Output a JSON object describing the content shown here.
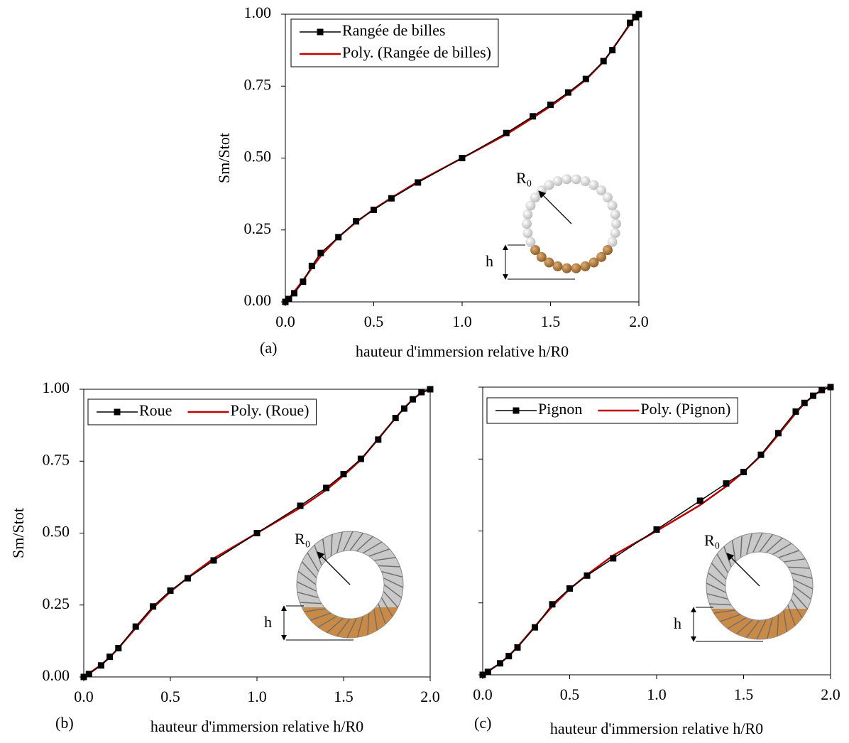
{
  "chart_data": [
    {
      "type": "line",
      "panel_label": "(a)",
      "ylabel": "Sm/Stot",
      "xlabel": "hauteur d'immersion relative h/R0",
      "xlim": [
        0,
        2
      ],
      "ylim": [
        0,
        1
      ],
      "xticks": [
        {
          "value": 0,
          "label": "0.0"
        },
        {
          "value": 0.5,
          "label": "0.5"
        },
        {
          "value": 1,
          "label": "1.0"
        },
        {
          "value": 1.5,
          "label": "1.5"
        },
        {
          "value": 2,
          "label": "2.0"
        }
      ],
      "yticks": [
        {
          "value": 0,
          "label": "0.00"
        },
        {
          "value": 0.25,
          "label": "0.25"
        },
        {
          "value": 0.5,
          "label": "0.50"
        },
        {
          "value": 0.75,
          "label": "0.75"
        },
        {
          "value": 1,
          "label": "1.00"
        }
      ],
      "show_ytick_labels": true,
      "legend_layout": "column",
      "inset": {
        "kind": "balls",
        "radius_label": "R₀",
        "height_label": "h"
      },
      "x": [
        0,
        0.02,
        0.05,
        0.1,
        0.15,
        0.2,
        0.3,
        0.4,
        0.5,
        0.6,
        0.75,
        1,
        1.25,
        1.4,
        1.5,
        1.6,
        1.7,
        1.8,
        1.85,
        1.95,
        1.98,
        2
      ],
      "series": [
        {
          "name": "Rangée de billes",
          "color": "#000000",
          "marker": "square",
          "values": [
            0,
            0.01,
            0.03,
            0.07,
            0.125,
            0.17,
            0.225,
            0.28,
            0.32,
            0.36,
            0.415,
            0.5,
            0.587,
            0.645,
            0.685,
            0.728,
            0.775,
            0.837,
            0.875,
            0.97,
            0.99,
            1
          ]
        },
        {
          "name": "Poly. (Rangée de billes)",
          "color": "#c00000",
          "marker": "none",
          "values": [
            0,
            0.012,
            0.035,
            0.075,
            0.118,
            0.16,
            0.225,
            0.277,
            0.322,
            0.362,
            0.418,
            0.5,
            0.582,
            0.64,
            0.68,
            0.724,
            0.772,
            0.835,
            0.878,
            0.965,
            0.988,
            1
          ]
        }
      ]
    },
    {
      "type": "line",
      "panel_label": "(b)",
      "ylabel": "Sm/Stot",
      "xlabel": "hauteur d'immersion relative h/R0",
      "xlim": [
        0,
        2
      ],
      "ylim": [
        0,
        1
      ],
      "xticks": [
        {
          "value": 0,
          "label": "0.0"
        },
        {
          "value": 0.5,
          "label": "0.5"
        },
        {
          "value": 1,
          "label": "1.0"
        },
        {
          "value": 1.5,
          "label": "1.5"
        },
        {
          "value": 2,
          "label": "2.0"
        }
      ],
      "yticks": [
        {
          "value": 0,
          "label": "0.00"
        },
        {
          "value": 0.25,
          "label": "0.25"
        },
        {
          "value": 0.5,
          "label": "0.50"
        },
        {
          "value": 0.75,
          "label": "0.75"
        },
        {
          "value": 1,
          "label": "1.00"
        }
      ],
      "show_ytick_labels": true,
      "legend_layout": "row",
      "inset": {
        "kind": "gear",
        "radius_label": "R₀",
        "height_label": "h"
      },
      "x": [
        0,
        0.03,
        0.1,
        0.15,
        0.2,
        0.3,
        0.4,
        0.5,
        0.6,
        0.75,
        1,
        1.25,
        1.4,
        1.5,
        1.6,
        1.7,
        1.8,
        1.85,
        1.9,
        1.95,
        2
      ],
      "series": [
        {
          "name": "Roue",
          "color": "#000000",
          "marker": "square",
          "values": [
            0,
            0.01,
            0.04,
            0.07,
            0.1,
            0.175,
            0.245,
            0.3,
            0.343,
            0.405,
            0.5,
            0.595,
            0.657,
            0.705,
            0.758,
            0.825,
            0.9,
            0.933,
            0.965,
            0.99,
            1
          ]
        },
        {
          "name": "Poly. (Roue)",
          "color": "#c00000",
          "marker": "none",
          "values": [
            0,
            0.012,
            0.042,
            0.068,
            0.1,
            0.17,
            0.24,
            0.296,
            0.345,
            0.412,
            0.5,
            0.588,
            0.65,
            0.7,
            0.755,
            0.828,
            0.9,
            0.935,
            0.965,
            0.988,
            1
          ]
        }
      ]
    },
    {
      "type": "line",
      "panel_label": "(c)",
      "xlabel": "hauteur d'immersion relative h/R0",
      "xlim": [
        0,
        2
      ],
      "ylim": [
        0,
        1
      ],
      "xticks": [
        {
          "value": 0,
          "label": "0.0"
        },
        {
          "value": 0.5,
          "label": "0.5"
        },
        {
          "value": 1,
          "label": "1.0"
        },
        {
          "value": 1.5,
          "label": "1.5"
        },
        {
          "value": 2,
          "label": "2.0"
        }
      ],
      "yticks": [
        0,
        0.25,
        0.5,
        0.75,
        1
      ],
      "show_ytick_labels": false,
      "legend_layout": "row",
      "inset": {
        "kind": "gear",
        "radius_label": "R₀",
        "height_label": "h"
      },
      "x": [
        0,
        0.03,
        0.1,
        0.15,
        0.2,
        0.3,
        0.4,
        0.5,
        0.6,
        0.75,
        1,
        1.25,
        1.4,
        1.5,
        1.6,
        1.7,
        1.8,
        1.85,
        1.9,
        1.95,
        2
      ],
      "series": [
        {
          "name": "Pignon",
          "color": "#000000",
          "marker": "square",
          "values": [
            0,
            0.01,
            0.04,
            0.065,
            0.095,
            0.165,
            0.245,
            0.3,
            0.345,
            0.405,
            0.505,
            0.605,
            0.665,
            0.705,
            0.765,
            0.84,
            0.915,
            0.945,
            0.97,
            0.99,
            1
          ]
        },
        {
          "name": "Poly. (Pignon)",
          "color": "#c00000",
          "marker": "none",
          "values": [
            0,
            0.012,
            0.04,
            0.066,
            0.097,
            0.168,
            0.238,
            0.298,
            0.348,
            0.415,
            0.5,
            0.59,
            0.655,
            0.705,
            0.762,
            0.835,
            0.91,
            0.943,
            0.97,
            0.99,
            1
          ]
        }
      ]
    }
  ]
}
